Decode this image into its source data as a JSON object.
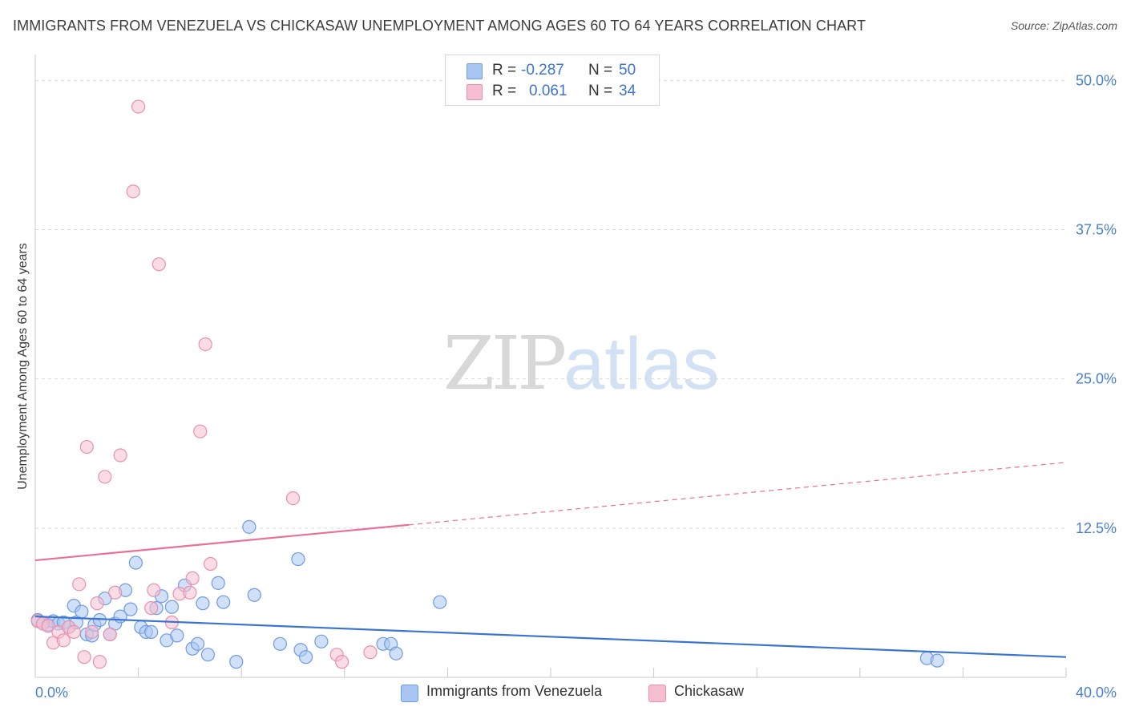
{
  "header": {
    "title": "IMMIGRANTS FROM VENEZUELA VS CHICKASAW UNEMPLOYMENT AMONG AGES 60 TO 64 YEARS CORRELATION CHART",
    "source": "Source: ZipAtlas.com"
  },
  "watermark": {
    "zip": "ZIP",
    "atlas": "atlas"
  },
  "colors": {
    "blue_fill": "#a9c6f2",
    "blue_stroke": "#6f9be0",
    "blue_line": "#3a74d0",
    "pink_fill": "#f6bfd0",
    "pink_stroke": "#e891ae",
    "pink_line": "#e8709a",
    "tick_text": "#4a7fd0",
    "grid": "#d9d9d9"
  },
  "legend": {
    "rows": [
      {
        "r_label": "R =",
        "r_value": "-0.287",
        "n_label": "N =",
        "n_value": "50"
      },
      {
        "r_label": "R =",
        "r_value": "0.061",
        "n_label": "N =",
        "n_value": "34"
      }
    ],
    "bottom": [
      "Immigrants from Venezuela",
      "Chickasaw"
    ]
  },
  "chart_data": {
    "type": "scatter",
    "title": "IMMIGRANTS FROM VENEZUELA VS CHICKASAW UNEMPLOYMENT AMONG AGES 60 TO 64 YEARS CORRELATION CHART",
    "xlabel": "",
    "ylabel": "Unemployment Among Ages 60 to 64 years",
    "xlim": [
      0,
      40
    ],
    "ylim": [
      0,
      51.5
    ],
    "x_tick_labels": [
      "0.0%",
      "40.0%"
    ],
    "y_ticks": [
      12.5,
      25.0,
      37.5,
      50.0
    ],
    "y_tick_labels": [
      "12.5%",
      "25.0%",
      "37.5%",
      "50.0%"
    ],
    "grid": true,
    "legend_position": "top-center",
    "series": [
      {
        "name": "Immigrants from Venezuela",
        "R": -0.287,
        "N": 50,
        "trend": {
          "x0": 0,
          "y0": 5.1,
          "x1": 40,
          "y1": 1.7,
          "solid_to_x": 40
        },
        "points": [
          [
            0.1,
            4.8
          ],
          [
            0.3,
            4.5
          ],
          [
            0.5,
            4.4
          ],
          [
            0.7,
            4.7
          ],
          [
            0.9,
            4.5
          ],
          [
            1.1,
            4.6
          ],
          [
            1.3,
            4.2
          ],
          [
            1.5,
            6.0
          ],
          [
            1.6,
            4.6
          ],
          [
            1.8,
            5.5
          ],
          [
            2.0,
            3.6
          ],
          [
            2.2,
            3.5
          ],
          [
            2.3,
            4.4
          ],
          [
            2.5,
            4.8
          ],
          [
            2.7,
            6.6
          ],
          [
            2.9,
            3.6
          ],
          [
            3.1,
            4.5
          ],
          [
            3.3,
            5.1
          ],
          [
            3.5,
            7.3
          ],
          [
            3.7,
            5.7
          ],
          [
            3.9,
            9.6
          ],
          [
            4.1,
            4.2
          ],
          [
            4.3,
            3.8
          ],
          [
            4.5,
            3.8
          ],
          [
            4.7,
            5.8
          ],
          [
            4.9,
            6.8
          ],
          [
            5.1,
            3.1
          ],
          [
            5.3,
            5.9
          ],
          [
            5.5,
            3.5
          ],
          [
            5.8,
            7.7
          ],
          [
            6.1,
            2.4
          ],
          [
            6.3,
            2.8
          ],
          [
            6.5,
            6.2
          ],
          [
            6.7,
            1.9
          ],
          [
            7.1,
            7.9
          ],
          [
            7.3,
            6.3
          ],
          [
            7.8,
            1.3
          ],
          [
            8.3,
            12.6
          ],
          [
            8.5,
            6.9
          ],
          [
            9.5,
            2.8
          ],
          [
            10.2,
            9.9
          ],
          [
            10.3,
            2.3
          ],
          [
            10.5,
            1.7
          ],
          [
            11.1,
            3.0
          ],
          [
            13.5,
            2.8
          ],
          [
            13.8,
            2.8
          ],
          [
            14.0,
            2.0
          ],
          [
            15.7,
            6.3
          ],
          [
            34.6,
            1.6
          ],
          [
            35.0,
            1.4
          ]
        ]
      },
      {
        "name": "Chickasaw",
        "R": 0.061,
        "N": 34,
        "trend": {
          "x0": 0,
          "y0": 9.8,
          "x1": 40,
          "y1": 18.0,
          "solid_to_x": 14.5
        },
        "points": [
          [
            0.1,
            4.7
          ],
          [
            0.3,
            4.5
          ],
          [
            0.5,
            4.3
          ],
          [
            0.7,
            2.9
          ],
          [
            0.9,
            3.8
          ],
          [
            1.1,
            3.1
          ],
          [
            1.3,
            4.2
          ],
          [
            1.5,
            3.8
          ],
          [
            1.7,
            7.8
          ],
          [
            1.9,
            1.7
          ],
          [
            2.0,
            19.3
          ],
          [
            2.2,
            3.8
          ],
          [
            2.4,
            6.2
          ],
          [
            2.5,
            1.3
          ],
          [
            2.7,
            16.8
          ],
          [
            2.9,
            3.6
          ],
          [
            3.1,
            7.1
          ],
          [
            3.3,
            18.6
          ],
          [
            4.0,
            47.8
          ],
          [
            3.8,
            40.7
          ],
          [
            4.5,
            5.8
          ],
          [
            4.6,
            7.3
          ],
          [
            4.8,
            34.6
          ],
          [
            5.3,
            4.6
          ],
          [
            5.6,
            7.0
          ],
          [
            6.0,
            7.1
          ],
          [
            6.1,
            8.3
          ],
          [
            6.4,
            20.6
          ],
          [
            6.6,
            27.9
          ],
          [
            6.8,
            9.5
          ],
          [
            10.0,
            15.0
          ],
          [
            11.7,
            1.9
          ],
          [
            11.9,
            1.3
          ],
          [
            13.0,
            2.1
          ]
        ]
      }
    ]
  }
}
